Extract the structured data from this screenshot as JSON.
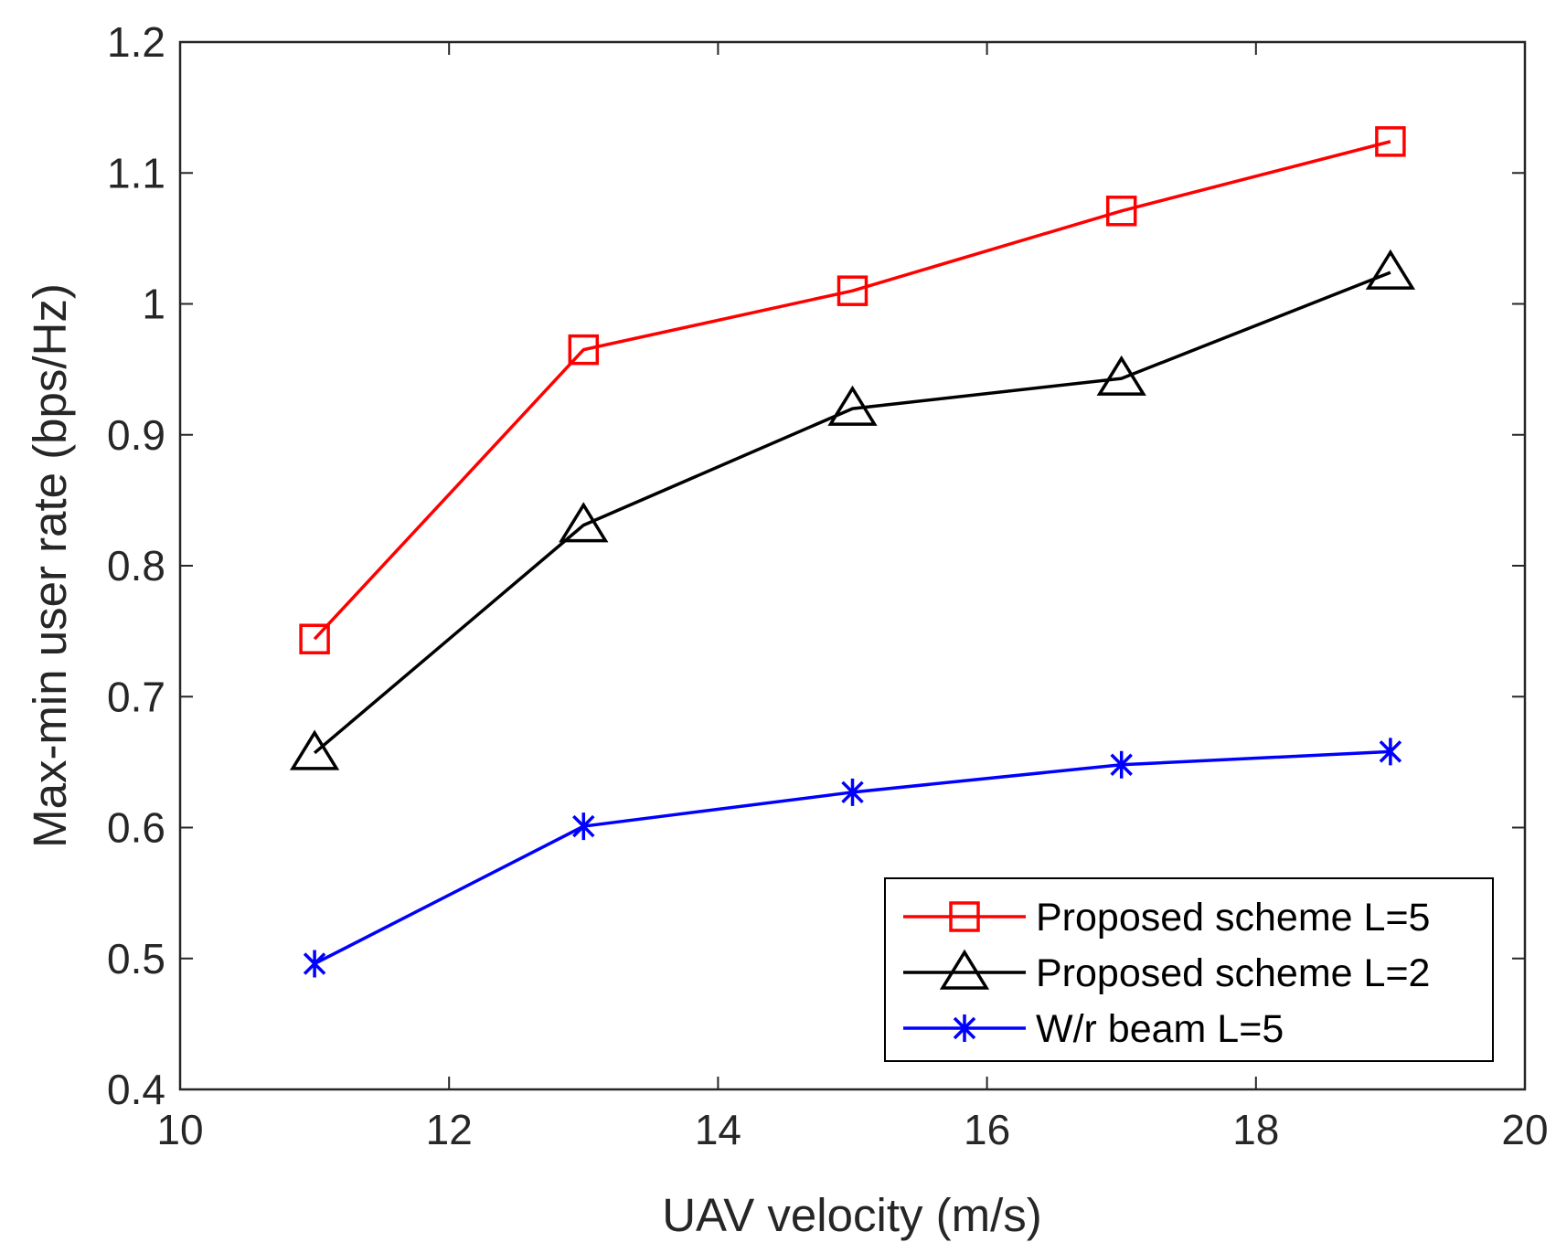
{
  "chart_data": {
    "type": "line",
    "title": "",
    "xlabel": "UAV velocity (m/s)",
    "ylabel": "Max-min user rate (bps/Hz)",
    "xlim": [
      10,
      20
    ],
    "ylim": [
      0.4,
      1.2
    ],
    "xticks": [
      10,
      12,
      14,
      16,
      18,
      20
    ],
    "yticks": [
      0.4,
      0.5,
      0.6,
      0.7,
      0.8,
      0.9,
      1.0,
      1.1,
      1.2
    ],
    "xtick_labels": [
      "10",
      "12",
      "14",
      "16",
      "18",
      "20"
    ],
    "ytick_labels": [
      "0.4",
      "0.5",
      "0.6",
      "0.7",
      "0.8",
      "0.9",
      "1",
      "1.1",
      "1.2"
    ],
    "grid": false,
    "legend_position": "bottom-right",
    "x": [
      11,
      13,
      15,
      17,
      19
    ],
    "series": [
      {
        "name": "Proposed scheme L=5",
        "color": "#ff0000",
        "marker": "square",
        "values": [
          0.744,
          0.965,
          1.01,
          1.071,
          1.124
        ]
      },
      {
        "name": "Proposed scheme L=2",
        "color": "#000000",
        "marker": "triangle",
        "values": [
          0.657,
          0.831,
          0.92,
          0.943,
          1.024
        ]
      },
      {
        "name": "W/r beam L=5",
        "color": "#0000ff",
        "marker": "asterisk",
        "values": [
          0.496,
          0.601,
          0.627,
          0.648,
          0.658
        ]
      }
    ]
  }
}
